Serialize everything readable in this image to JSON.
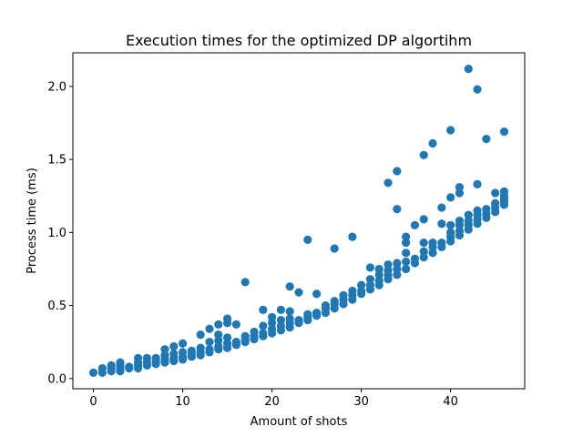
{
  "chart_data": {
    "type": "scatter",
    "title": "Execution times for the optimized DP algortihm",
    "xlabel": "Amount of shots",
    "ylabel": "Process time (ms)",
    "xlim": [
      -2.3,
      48.3
    ],
    "ylim": [
      -0.07,
      2.23
    ],
    "xticks": [
      0,
      10,
      20,
      30,
      40
    ],
    "xtick_labels": [
      "0",
      "10",
      "20",
      "30",
      "40"
    ],
    "yticks": [
      0.0,
      0.5,
      1.0,
      1.5,
      2.0
    ],
    "ytick_labels": [
      "0.0",
      "0.5",
      "1.0",
      "1.5",
      "2.0"
    ],
    "grid": false,
    "marker_color": "#1f77b4",
    "points": [
      [
        0,
        0.04
      ],
      [
        1,
        0.04
      ],
      [
        1,
        0.07
      ],
      [
        2,
        0.05
      ],
      [
        2,
        0.07
      ],
      [
        2,
        0.09
      ],
      [
        3,
        0.05
      ],
      [
        3,
        0.07
      ],
      [
        3,
        0.09
      ],
      [
        3,
        0.11
      ],
      [
        4,
        0.07
      ],
      [
        4,
        0.08
      ],
      [
        5,
        0.07
      ],
      [
        5,
        0.09
      ],
      [
        5,
        0.11
      ],
      [
        5,
        0.14
      ],
      [
        6,
        0.09
      ],
      [
        6,
        0.11
      ],
      [
        6,
        0.14
      ],
      [
        7,
        0.1
      ],
      [
        7,
        0.12
      ],
      [
        7,
        0.14
      ],
      [
        8,
        0.11
      ],
      [
        8,
        0.13
      ],
      [
        8,
        0.16
      ],
      [
        8,
        0.2
      ],
      [
        9,
        0.12
      ],
      [
        9,
        0.14
      ],
      [
        9,
        0.17
      ],
      [
        9,
        0.22
      ],
      [
        10,
        0.13
      ],
      [
        10,
        0.15
      ],
      [
        10,
        0.18
      ],
      [
        10,
        0.24
      ],
      [
        11,
        0.15
      ],
      [
        11,
        0.17
      ],
      [
        11,
        0.19
      ],
      [
        12,
        0.16
      ],
      [
        12,
        0.18
      ],
      [
        12,
        0.21
      ],
      [
        12,
        0.3
      ],
      [
        13,
        0.18
      ],
      [
        13,
        0.2
      ],
      [
        13,
        0.25
      ],
      [
        13,
        0.34
      ],
      [
        14,
        0.2
      ],
      [
        14,
        0.22
      ],
      [
        14,
        0.26
      ],
      [
        14,
        0.3
      ],
      [
        14,
        0.37
      ],
      [
        15,
        0.21
      ],
      [
        15,
        0.24
      ],
      [
        15,
        0.28
      ],
      [
        15,
        0.38
      ],
      [
        15,
        0.41
      ],
      [
        16,
        0.23
      ],
      [
        16,
        0.25
      ],
      [
        16,
        0.37
      ],
      [
        17,
        0.25
      ],
      [
        17,
        0.27
      ],
      [
        17,
        0.29
      ],
      [
        17,
        0.66
      ],
      [
        18,
        0.27
      ],
      [
        18,
        0.29
      ],
      [
        18,
        0.32
      ],
      [
        19,
        0.29
      ],
      [
        19,
        0.31
      ],
      [
        19,
        0.36
      ],
      [
        19,
        0.47
      ],
      [
        20,
        0.31
      ],
      [
        20,
        0.34
      ],
      [
        20,
        0.38
      ],
      [
        20,
        0.42
      ],
      [
        21,
        0.33
      ],
      [
        21,
        0.36
      ],
      [
        21,
        0.4
      ],
      [
        21,
        0.47
      ],
      [
        22,
        0.35
      ],
      [
        22,
        0.38
      ],
      [
        22,
        0.41
      ],
      [
        22,
        0.46
      ],
      [
        22,
        0.63
      ],
      [
        23,
        0.38
      ],
      [
        23,
        0.4
      ],
      [
        23,
        0.59
      ],
      [
        24,
        0.4
      ],
      [
        24,
        0.42
      ],
      [
        24,
        0.44
      ],
      [
        24,
        0.95
      ],
      [
        25,
        0.43
      ],
      [
        25,
        0.45
      ],
      [
        25,
        0.58
      ],
      [
        26,
        0.45
      ],
      [
        26,
        0.48
      ],
      [
        26,
        0.5
      ],
      [
        27,
        0.48
      ],
      [
        27,
        0.51
      ],
      [
        27,
        0.53
      ],
      [
        27,
        0.89
      ],
      [
        28,
        0.51
      ],
      [
        28,
        0.54
      ],
      [
        28,
        0.57
      ],
      [
        29,
        0.54
      ],
      [
        29,
        0.57
      ],
      [
        29,
        0.6
      ],
      [
        29,
        0.97
      ],
      [
        30,
        0.58
      ],
      [
        30,
        0.6
      ],
      [
        30,
        0.64
      ],
      [
        31,
        0.61
      ],
      [
        31,
        0.64
      ],
      [
        31,
        0.68
      ],
      [
        31,
        0.76
      ],
      [
        32,
        0.64
      ],
      [
        32,
        0.67
      ],
      [
        32,
        0.71
      ],
      [
        32,
        0.75
      ],
      [
        33,
        0.68
      ],
      [
        33,
        0.71
      ],
      [
        33,
        0.74
      ],
      [
        33,
        0.78
      ],
      [
        33,
        1.34
      ],
      [
        34,
        0.71
      ],
      [
        34,
        0.75
      ],
      [
        34,
        0.79
      ],
      [
        34,
        1.16
      ],
      [
        34,
        1.42
      ],
      [
        35,
        0.75
      ],
      [
        35,
        0.8
      ],
      [
        35,
        0.86
      ],
      [
        35,
        0.93
      ],
      [
        35,
        0.97
      ],
      [
        36,
        0.79
      ],
      [
        36,
        0.82
      ],
      [
        36,
        1.05
      ],
      [
        37,
        0.83
      ],
      [
        37,
        0.87
      ],
      [
        37,
        0.93
      ],
      [
        37,
        1.09
      ],
      [
        37,
        1.53
      ],
      [
        38,
        0.86
      ],
      [
        38,
        0.9
      ],
      [
        38,
        0.93
      ],
      [
        38,
        1.61
      ],
      [
        39,
        0.9
      ],
      [
        39,
        0.93
      ],
      [
        39,
        1.06
      ],
      [
        39,
        1.17
      ],
      [
        40,
        0.94
      ],
      [
        40,
        0.97
      ],
      [
        40,
        1.0
      ],
      [
        40,
        1.05
      ],
      [
        40,
        1.24
      ],
      [
        40,
        1.7
      ],
      [
        41,
        0.98
      ],
      [
        41,
        1.01
      ],
      [
        41,
        1.05
      ],
      [
        41,
        1.08
      ],
      [
        41,
        1.27
      ],
      [
        41,
        1.31
      ],
      [
        42,
        1.02
      ],
      [
        42,
        1.05
      ],
      [
        42,
        1.08
      ],
      [
        42,
        1.12
      ],
      [
        42,
        2.12
      ],
      [
        43,
        1.06
      ],
      [
        43,
        1.09
      ],
      [
        43,
        1.12
      ],
      [
        43,
        1.15
      ],
      [
        43,
        1.33
      ],
      [
        43,
        1.98
      ],
      [
        44,
        1.1
      ],
      [
        44,
        1.13
      ],
      [
        44,
        1.16
      ],
      [
        44,
        1.64
      ],
      [
        45,
        1.14
      ],
      [
        45,
        1.17
      ],
      [
        45,
        1.2
      ],
      [
        45,
        1.27
      ],
      [
        46,
        1.19
      ],
      [
        46,
        1.21
      ],
      [
        46,
        1.23
      ],
      [
        46,
        1.25
      ],
      [
        46,
        1.28
      ],
      [
        46,
        1.69
      ]
    ]
  }
}
